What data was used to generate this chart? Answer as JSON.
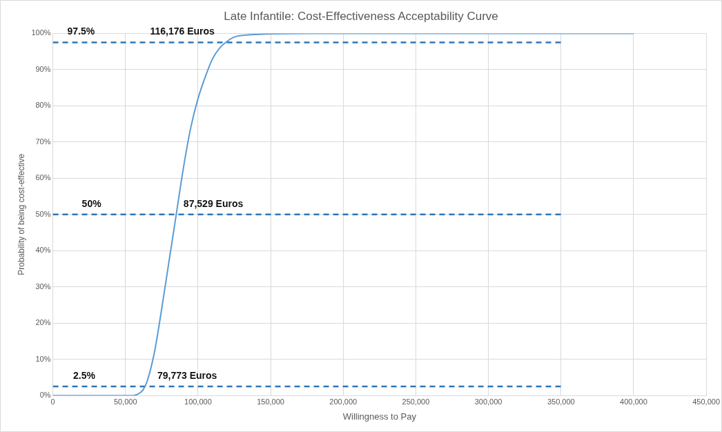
{
  "chart_data": {
    "type": "line",
    "title": "Late Infantile: Cost-Effectiveness Acceptability Curve",
    "xlabel": "Willingness to Pay",
    "ylabel": "Probability of being cost-effective",
    "series": [
      {
        "color": "#5b9bd5",
        "line_style": "solid",
        "x": [
          0,
          55000,
          58000,
          62000,
          65000,
          70000,
          75000,
          80000,
          85000,
          90000,
          95000,
          100000,
          105000,
          110000,
          115000,
          120000,
          125000,
          135000,
          175000,
          400000
        ],
        "values": [
          0,
          0,
          0.3,
          1.5,
          4,
          12,
          24,
          37,
          50,
          63,
          74,
          82,
          88,
          93,
          96,
          97.8,
          99,
          99.6,
          100,
          100
        ]
      },
      {
        "color": "#2e75b6",
        "line_style": "dashed",
        "x": [
          0,
          350000
        ],
        "values": [
          97.5,
          97.5
        ]
      },
      {
        "color": "#2e75b6",
        "line_style": "dashed",
        "x": [
          0,
          350000
        ],
        "values": [
          50,
          50
        ]
      },
      {
        "color": "#2e75b6",
        "line_style": "dashed",
        "x": [
          0,
          350000
        ],
        "values": [
          2.5,
          2.5
        ]
      }
    ],
    "annotations": [
      {
        "text": "97.5%",
        "x": 10000,
        "y": 97.5
      },
      {
        "text": "116,176 Euros",
        "x": 67000,
        "y": 97.5
      },
      {
        "text": "50%",
        "x": 20000,
        "y": 50
      },
      {
        "text": "87,529 Euros",
        "x": 90000,
        "y": 50
      },
      {
        "text": "2.5%",
        "x": 14000,
        "y": 2.5
      },
      {
        "text": "79,773 Euros",
        "x": 72000,
        "y": 2.5
      }
    ],
    "xlim": [
      0,
      450000
    ],
    "xticks": [
      0,
      {
        "value": 50000,
        "label": "50,000"
      },
      {
        "value": 100000,
        "label": "100,000"
      },
      {
        "value": 150000,
        "label": "150,000"
      },
      {
        "value": 200000,
        "label": "200,000"
      },
      {
        "value": 250000,
        "label": "250,000"
      },
      {
        "value": 300000,
        "label": "300,000"
      },
      {
        "value": 350000,
        "label": "350,000"
      },
      {
        "value": 400000,
        "label": "400,000"
      },
      {
        "value": 450000,
        "label": "450,000"
      }
    ],
    "ylim": [
      0,
      100
    ],
    "yticks": [
      {
        "value": 0,
        "label": "0%"
      },
      {
        "value": 10,
        "label": "10%"
      },
      {
        "value": 20,
        "label": "20%"
      },
      {
        "value": 30,
        "label": "30%"
      },
      {
        "value": 40,
        "label": "40%"
      },
      {
        "value": 50,
        "label": "50%"
      },
      {
        "value": 60,
        "label": "60%"
      },
      {
        "value": 70,
        "label": "70%"
      },
      {
        "value": 80,
        "label": "80%"
      },
      {
        "value": 90,
        "label": "90%"
      },
      {
        "value": 100,
        "label": "100%"
      }
    ],
    "grid": true,
    "legend": false,
    "marker": "none"
  }
}
